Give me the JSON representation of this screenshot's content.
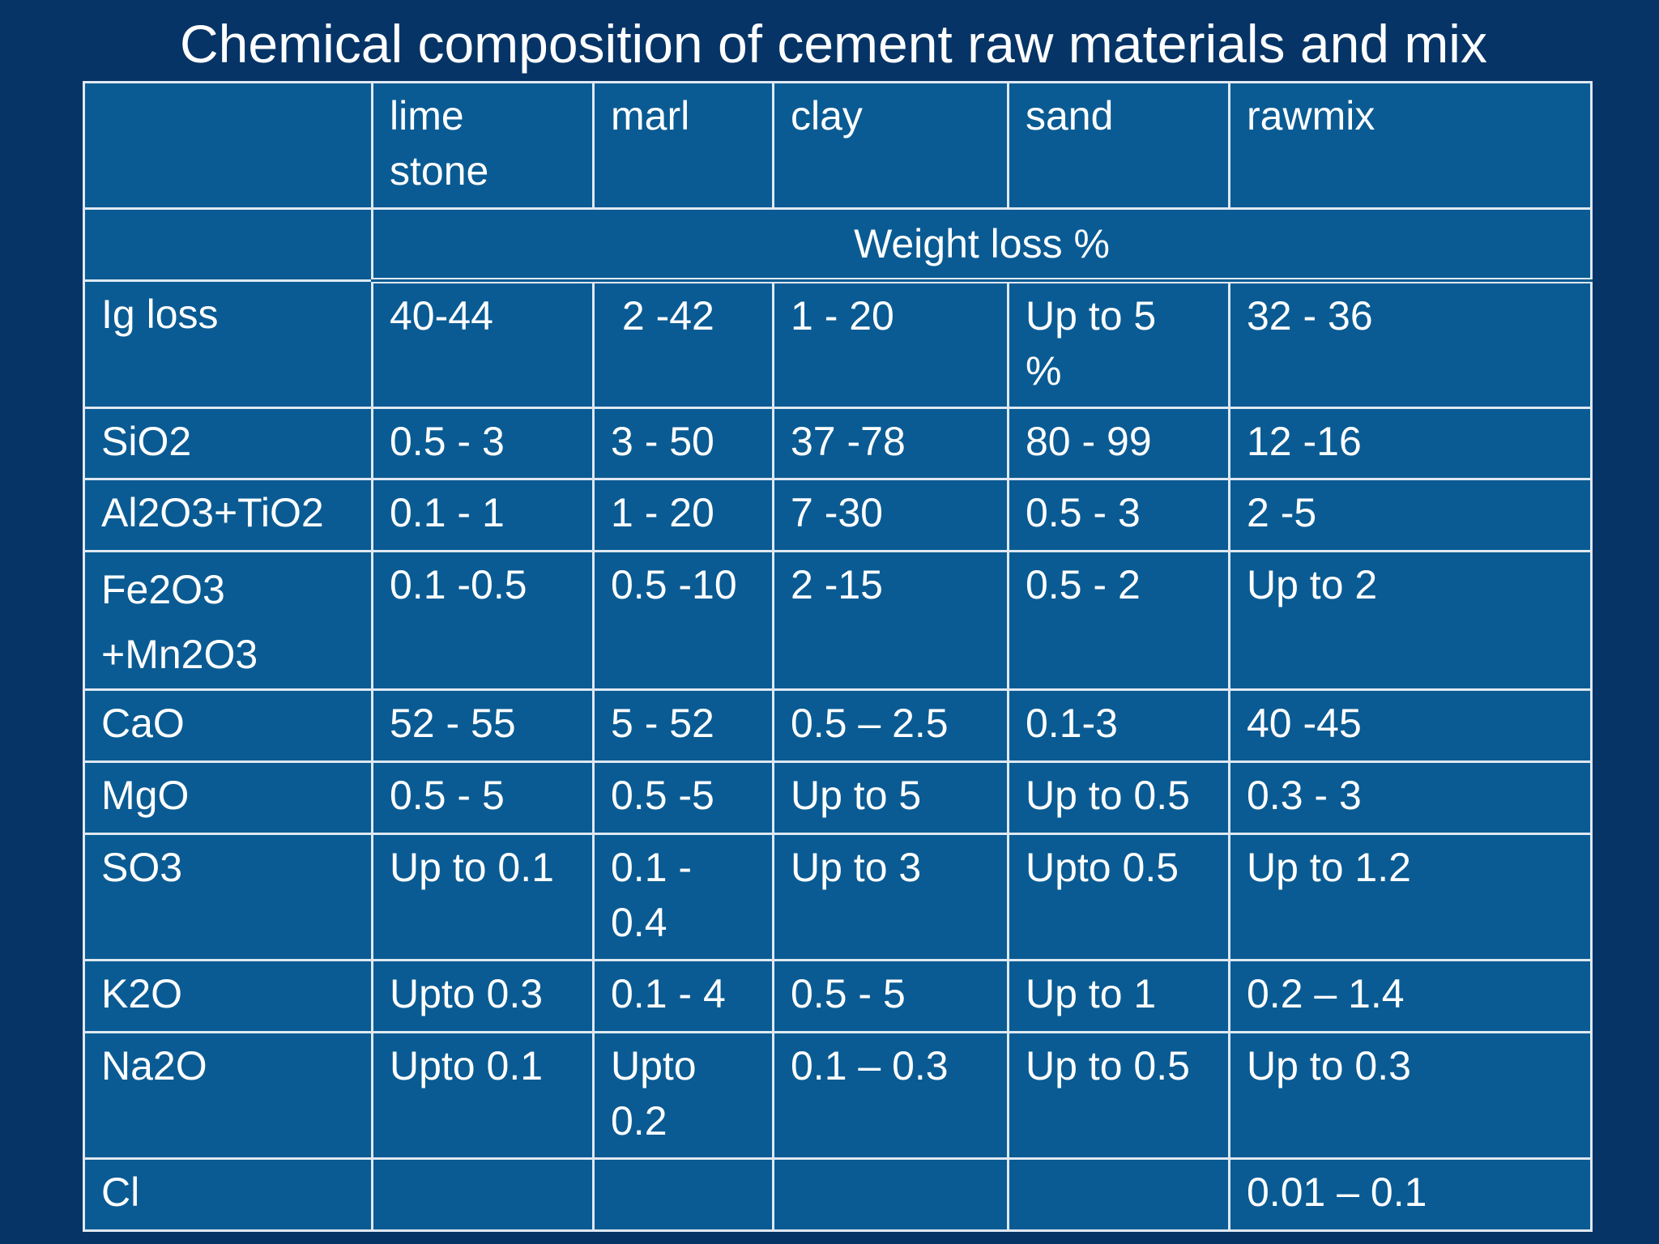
{
  "title": "Chemical composition of cement raw materials and mix",
  "columns": [
    "lime stone",
    "marl",
    "clay",
    "sand",
    "rawmix"
  ],
  "subheader": "Weight loss %",
  "rows": [
    {
      "label": "Ig loss",
      "cells": [
        "40-44",
        " 2 -42",
        "1 - 20",
        "Up to 5 %",
        "32 - 36"
      ]
    },
    {
      "label": "SiO2",
      "cells": [
        "0.5 - 3",
        "3 - 50",
        "37 -78",
        "80 - 99",
        "12 -16"
      ]
    },
    {
      "label": "Al2O3+TiO2",
      "cells": [
        "0.1 - 1",
        "1 - 20",
        "7 -30",
        "0.5 - 3",
        "2 -5"
      ]
    },
    {
      "label": "Fe2O3 +Mn2O3",
      "cells": [
        "0.1 -0.5",
        "0.5 -10",
        "2 -15",
        "0.5 - 2",
        "Up to 2"
      ]
    },
    {
      "label": "CaO",
      "cells": [
        "52 - 55",
        "5 - 52",
        "0.5 – 2.5",
        "0.1-3",
        "40 -45"
      ]
    },
    {
      "label": "MgO",
      "cells": [
        "0.5 - 5",
        "0.5 -5",
        "Up to 5",
        "Up to 0.5",
        "0.3 - 3"
      ]
    },
    {
      "label": "SO3",
      "cells": [
        "Up to 0.1",
        "0.1 - 0.4",
        "Up to 3",
        "Upto 0.5",
        "Up to 1.2"
      ]
    },
    {
      "label": "K2O",
      "cells": [
        "Upto 0.3",
        "0.1 - 4",
        "0.5 - 5",
        "Up to 1",
        "0.2 – 1.4"
      ]
    },
    {
      "label": "Na2O",
      "cells": [
        "Upto 0.1",
        "Upto 0.2",
        "0.1 – 0.3",
        "Up to 0.5",
        "Up to 0.3"
      ]
    },
    {
      "label": "Cl",
      "cells": [
        "",
        "",
        "",
        "",
        "0.01 – 0.1"
      ]
    }
  ]
}
